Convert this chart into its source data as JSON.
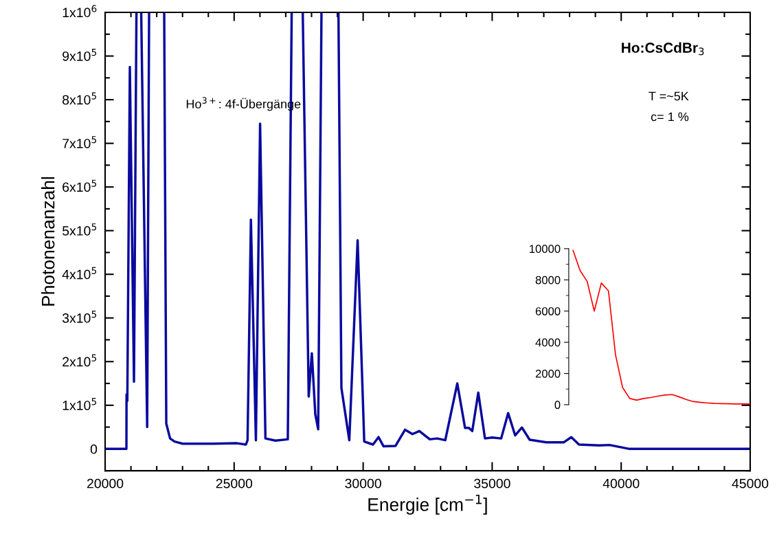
{
  "chart_data": [
    {
      "type": "line",
      "xlabel": "Energie [cm$^{−1}$]",
      "ylabel": "Photonenanzahl",
      "annotations": [
        "Ho$^{3+}$: 4f-Übergänge",
        "Ho:CsCdBr$_{3}$",
        "T =~5K",
        "c= 1 %"
      ],
      "xlim": [
        20000,
        45000
      ],
      "ylim": [
        -50000,
        1000000
      ],
      "xticks": [
        20000,
        {
          "value": 21000,
          "label": null
        },
        {
          "value": 22000,
          "label": null
        },
        {
          "value": 23000,
          "label": null
        },
        {
          "value": 24000,
          "label": null
        },
        25000,
        {
          "value": 26000,
          "label": null
        },
        {
          "value": 27000,
          "label": null
        },
        {
          "value": 28000,
          "label": null
        },
        {
          "value": 29000,
          "label": null
        },
        30000,
        {
          "value": 31000,
          "label": null
        },
        {
          "value": 32000,
          "label": null
        },
        {
          "value": 33000,
          "label": null
        },
        {
          "value": 34000,
          "label": null
        },
        35000,
        {
          "value": 36000,
          "label": null
        },
        {
          "value": 37000,
          "label": null
        },
        {
          "value": 38000,
          "label": null
        },
        {
          "value": 39000,
          "label": null
        },
        40000,
        {
          "value": 41000,
          "label": null
        },
        {
          "value": 42000,
          "label": null
        },
        {
          "value": 43000,
          "label": null
        },
        {
          "value": 44000,
          "label": null
        },
        45000
      ],
      "yticks": [
        {
          "value": -50000,
          "label": null
        },
        0,
        {
          "value": 50000,
          "label": null
        },
        {
          "value": 100000,
          "label": "1x10$^{5}$"
        },
        {
          "value": 150000,
          "label": null
        },
        {
          "value": 200000,
          "label": "2x10$^{5}$"
        },
        {
          "value": 250000,
          "label": null
        },
        {
          "value": 300000,
          "label": "3x10$^{5}$"
        },
        {
          "value": 350000,
          "label": null
        },
        {
          "value": 400000,
          "label": "4x10$^{5}$"
        },
        {
          "value": 450000,
          "label": null
        },
        {
          "value": 500000,
          "label": "5x10$^{5}$"
        },
        {
          "value": 550000,
          "label": null
        },
        {
          "value": 600000,
          "label": "6x10$^{5}$"
        },
        {
          "value": 650000,
          "label": null
        },
        {
          "value": 700000,
          "label": "7x10$^{5}$"
        },
        {
          "value": 750000,
          "label": null
        },
        {
          "value": 800000,
          "label": "8x10$^{5}$"
        },
        {
          "value": 850000,
          "label": null
        },
        {
          "value": 900000,
          "label": "9x10$^{5}$"
        },
        {
          "value": 950000,
          "label": null
        },
        {
          "value": 1000000,
          "label": "1x10$^{6}$"
        }
      ],
      "grid": false,
      "marker": "none",
      "line_style": "solid",
      "series": [
        {
          "color": "#0a0a9e",
          "x": [
            20000,
            20825,
            20830,
            20860,
            20958,
            21118,
            21214,
            21300,
            21398,
            21629,
            21704,
            22000,
            22289,
            22370,
            22518,
            22690,
            23000,
            23700,
            24200,
            25110,
            25457,
            25520,
            25650,
            25843,
            26006,
            26213,
            26600,
            27080,
            27230,
            27450,
            27659,
            27890,
            28011,
            28146,
            28257,
            28385,
            28700,
            29043,
            29157,
            29463,
            29786,
            30042,
            30382,
            30595,
            30792,
            31255,
            31625,
            31912,
            32178,
            32583,
            32870,
            33183,
            33648,
            33949,
            34100,
            34229,
            34462,
            34721,
            35003,
            35349,
            35620,
            35892,
            36153,
            36452,
            37103,
            37770,
            38067,
            38365,
            39160,
            39550,
            40325,
            41000,
            45000
          ],
          "values": [
            0,
            0,
            125000,
            110000,
            875000,
            154000,
            1000000,
            null,
            1000000,
            50000,
            1000000,
            null,
            1000000,
            58000,
            24000,
            17000,
            12000,
            12000,
            12000,
            13000,
            10000,
            20000,
            525000,
            20000,
            745000,
            24000,
            19000,
            22000,
            1000000,
            null,
            1000000,
            120000,
            219000,
            79000,
            45000,
            1000000,
            null,
            1000000,
            140000,
            20000,
            478000,
            17000,
            10000,
            27000,
            6000,
            7000,
            44000,
            34000,
            41000,
            22000,
            24000,
            20000,
            150000,
            48000,
            48000,
            41000,
            129000,
            24000,
            26000,
            24000,
            82000,
            31000,
            49000,
            21000,
            15000,
            15000,
            27000,
            10000,
            8000,
            9000,
            0,
            0,
            0
          ]
        }
      ]
    },
    {
      "type": "line",
      "tick_labels": "y",
      "categories": [
        null,
        null,
        null,
        null,
        null,
        null,
        null,
        null,
        null,
        null,
        null,
        null,
        null,
        null,
        null,
        null,
        null,
        null,
        null,
        null,
        null,
        null,
        null,
        null,
        null,
        null
      ],
      "ylim": [
        0,
        10000
      ],
      "yticks": [
        0,
        {
          "value": 1000,
          "label": null
        },
        2000,
        {
          "value": 3000,
          "label": null
        },
        4000,
        {
          "value": 5000,
          "label": null
        },
        6000,
        {
          "value": 7000,
          "label": null
        },
        8000,
        {
          "value": 9000,
          "label": null
        },
        10000
      ],
      "grid": false,
      "marker": "none",
      "line_style": "solid",
      "series": [
        {
          "color": "#ff0000",
          "values": [
            9900,
            8600,
            7900,
            6000,
            7800,
            7300,
            3200,
            1100,
            400,
            290,
            400,
            460,
            550,
            620,
            650,
            500,
            330,
            200,
            150,
            110,
            80,
            70,
            60,
            50,
            45,
            40
          ]
        }
      ]
    }
  ]
}
